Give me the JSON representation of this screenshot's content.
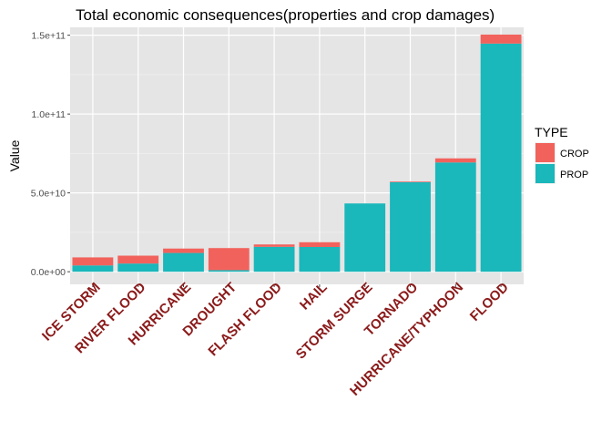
{
  "chart_data": {
    "type": "bar",
    "stacked": true,
    "title": "Total economic consequences(properties and crop damages)",
    "xlabel": "",
    "ylabel": "Value",
    "ylim": [
      -8000000000.0,
      155000000000.0
    ],
    "yticks": [
      0,
      50000000000,
      100000000000,
      150000000000
    ],
    "ytick_labels": [
      "0.0e+00",
      "5.0e+10",
      "1.0e+11",
      "1.5e+11"
    ],
    "categories": [
      "ICE STORM",
      "RIVER FLOOD",
      "HURRICANE",
      "DROUGHT",
      "FLASH FLOOD",
      "HAIL",
      "STORM SURGE",
      "TORNADO",
      "HURRICANE/TYPHOON",
      "FLOOD"
    ],
    "series": [
      {
        "name": "PROP",
        "color": "#1ab7bb",
        "values": [
          4000000000,
          5200000000,
          11900000000,
          1000000000,
          15800000000,
          15700000000,
          43300000000,
          56800000000,
          69300000000,
          144700000000
        ]
      },
      {
        "name": "CROP",
        "color": "#f2625c",
        "values": [
          5100000000,
          5000000000,
          2800000000,
          14000000000,
          1500000000,
          3000000000,
          0,
          400000000,
          2600000000,
          5700000000
        ]
      }
    ],
    "stack_order": [
      "PROP",
      "CROP"
    ],
    "legend": {
      "title": "TYPE",
      "placement": "right",
      "entries": [
        "CROP",
        "PROP"
      ]
    },
    "grid": true,
    "tick_label_color": "#8b1a1a",
    "panel_background": "#e5e5e5"
  }
}
